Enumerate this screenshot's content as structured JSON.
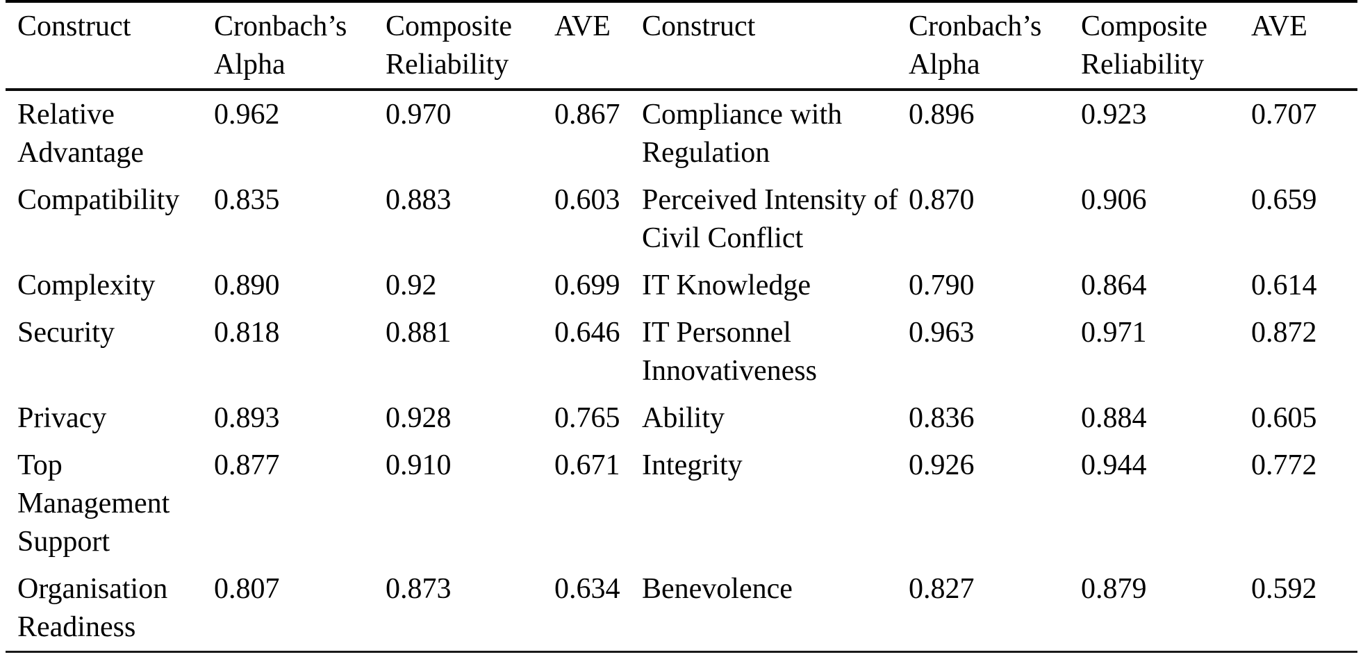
{
  "table": {
    "headers": {
      "construct_left": "Construct",
      "cronbachs_alpha_left": "Cronbach’s Alpha",
      "composite_reliability_left": "Composite Reliability",
      "ave_left": "AVE",
      "construct_right": "Construct",
      "cronbachs_alpha_right": "Cronbach’s Alpha",
      "composite_reliability_right": "Composite Reliability",
      "ave_right": "AVE"
    },
    "rows": [
      [
        "Relative Advantage",
        "0.962",
        "0.970",
        "0.867",
        "Compliance with Regulation",
        "0.896",
        "0.923",
        "0.707"
      ],
      [
        "Compatibility",
        "0.835",
        "0.883",
        "0.603",
        "Perceived Intensity of Civil Conflict",
        "0.870",
        "0.906",
        "0.659"
      ],
      [
        "Complexity",
        "0.890",
        "0.92",
        "0.699",
        "IT Knowledge",
        "0.790",
        "0.864",
        "0.614"
      ],
      [
        "Security",
        "0.818",
        "0.881",
        "0.646",
        "IT Personnel Innovativeness",
        "0.963",
        "0.971",
        "0.872"
      ],
      [
        "Privacy",
        "0.893",
        "0.928",
        "0.765",
        "Ability",
        "0.836",
        "0.884",
        "0.605"
      ],
      [
        "Top Management Support",
        "0.877",
        "0.910",
        "0.671",
        "Integrity",
        "0.926",
        "0.944",
        "0.772"
      ],
      [
        "Organisation Readiness",
        "0.807",
        "0.873",
        "0.634",
        "Benevolence",
        "0.827",
        "0.879",
        "0.592"
      ]
    ],
    "text_color": "#000000",
    "rule_color": "#000000",
    "background_color": "#ffffff"
  }
}
